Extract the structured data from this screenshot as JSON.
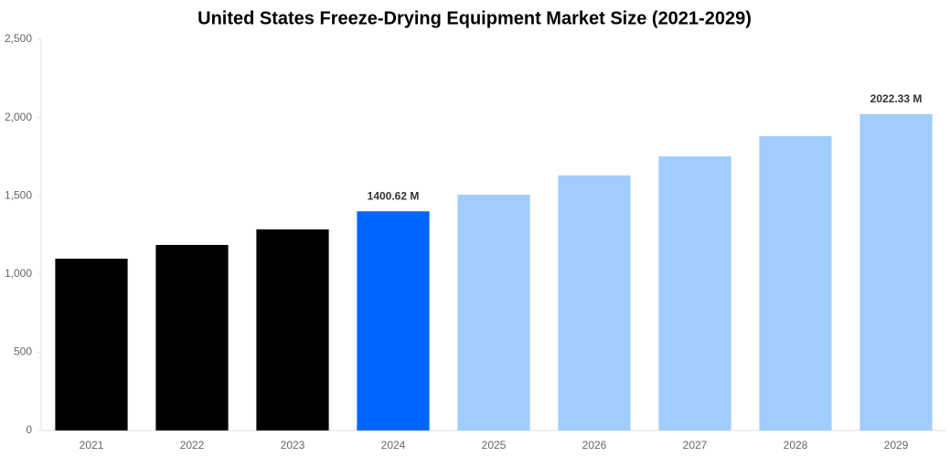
{
  "chart_data": {
    "type": "bar",
    "title": "United States Freeze-Drying Equipment Market Size (2021-2029)",
    "categories": [
      "2021",
      "2022",
      "2023",
      "2024",
      "2025",
      "2026",
      "2027",
      "2028",
      "2029"
    ],
    "values": [
      1098,
      1186,
      1285,
      1400.62,
      1507,
      1630,
      1752,
      1881,
      2022.33
    ],
    "value_labels": [
      null,
      null,
      null,
      "1400.62 M",
      null,
      null,
      null,
      null,
      "2022.33 M"
    ],
    "colors": [
      "#000000",
      "#000000",
      "#000000",
      "#0066ff",
      "#a0cdfd",
      "#a0cdfd",
      "#a0cdfd",
      "#a0cdfd",
      "#a0cdfd"
    ],
    "ylim": [
      0,
      2500
    ],
    "yticks": [
      0,
      500,
      {
        "value": 1000,
        "label": "1,000"
      },
      {
        "value": 1500,
        "label": "1,500"
      },
      {
        "value": 2000,
        "label": "2,000"
      },
      {
        "value": 2500,
        "label": "2,500"
      }
    ],
    "grid": false
  }
}
